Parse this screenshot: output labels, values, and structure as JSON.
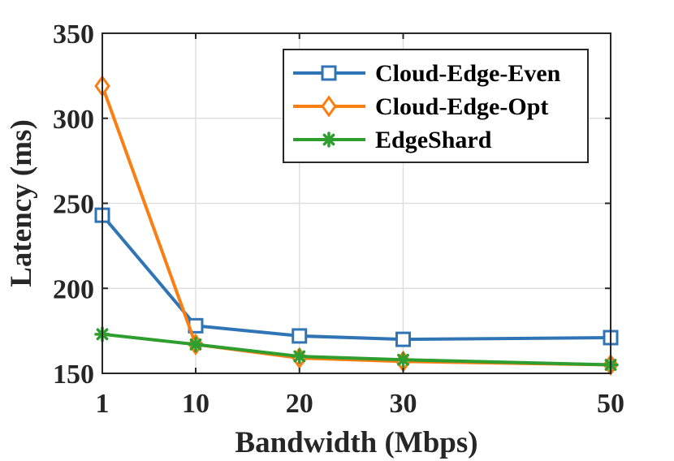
{
  "chart_data": {
    "type": "line",
    "title": "",
    "xlabel": "Bandwidth (Mbps)",
    "ylabel": "Latency (ms)",
    "x": [
      1,
      10,
      20,
      30,
      50
    ],
    "x_tick_labels": [
      "1",
      "10",
      "20",
      "30",
      "50"
    ],
    "y_ticks": [
      150,
      200,
      250,
      300,
      350
    ],
    "y_tick_labels": [
      "150",
      "200",
      "250",
      "300",
      "350"
    ],
    "xlim": [
      1,
      50
    ],
    "ylim": [
      150,
      350
    ],
    "grid": true,
    "legend_position": "top-right",
    "series": [
      {
        "name": "Cloud-Edge-Even",
        "color": "#2f74b5",
        "marker": "square",
        "values": [
          243,
          178,
          172,
          170,
          171
        ]
      },
      {
        "name": "Cloud-Edge-Opt",
        "color": "#fb7e12",
        "marker": "diamond",
        "values": [
          319,
          167,
          159,
          157,
          155
        ]
      },
      {
        "name": "EdgeShard",
        "color": "#2e9e2e",
        "marker": "asterisk",
        "values": [
          173,
          167,
          160,
          158,
          155
        ]
      }
    ]
  }
}
